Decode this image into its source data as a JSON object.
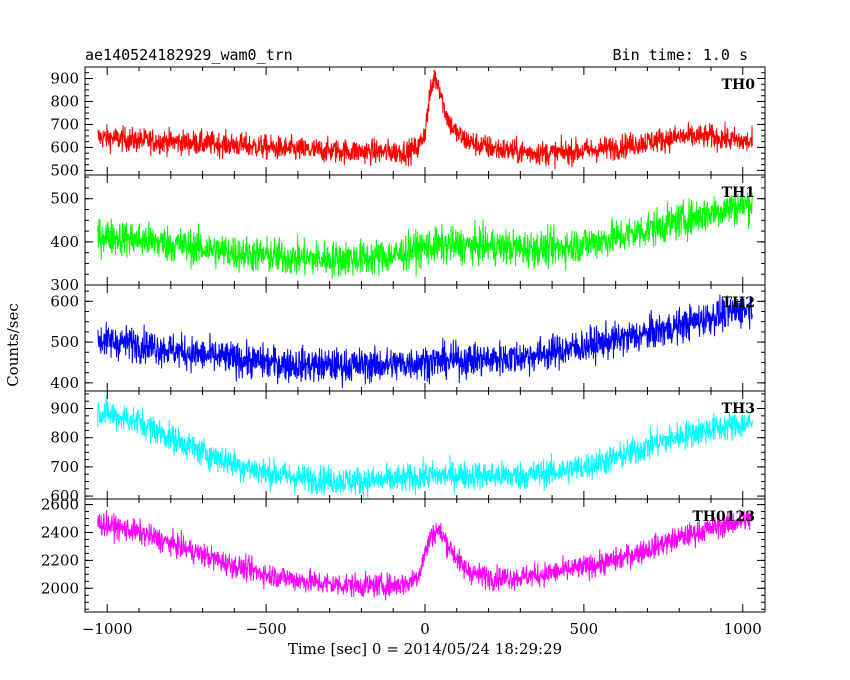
{
  "chart_data": {
    "type": "line",
    "title_left": "ae140524182929_wam0_trn",
    "title_right": "Bin time: 1.0 s",
    "xlabel": "Time [sec] 0 = 2014/05/24 18:29:29",
    "ylabel": "Counts/sec",
    "xlim": [
      -1070,
      1070
    ],
    "xticks": [
      -1000,
      -500,
      0,
      500,
      1000
    ],
    "xtick_labels": [
      "−1000",
      "−500",
      "0",
      "500",
      "1000"
    ],
    "grid": false,
    "panels": [
      {
        "name": "TH0",
        "color": "#ff0000",
        "ylim": [
          480,
          950
        ],
        "yticks": [
          500,
          600,
          700,
          800,
          900
        ],
        "ytick_labels": [
          "500",
          "600",
          "700",
          "800",
          "900"
        ],
        "noise": 38,
        "x": [
          -1030,
          -900,
          -800,
          -700,
          -600,
          -500,
          -400,
          -300,
          -200,
          -100,
          -50,
          -20,
          0,
          15,
          30,
          45,
          60,
          80,
          100,
          130,
          170,
          220,
          300,
          400,
          500,
          600,
          700,
          800,
          900,
          1030
        ],
        "mean": [
          645,
          630,
          625,
          618,
          612,
          600,
          590,
          585,
          582,
          580,
          583,
          600,
          670,
          820,
          910,
          870,
          770,
          700,
          660,
          630,
          610,
          595,
          580,
          575,
          585,
          600,
          625,
          645,
          648,
          620
        ]
      },
      {
        "name": "TH1",
        "color": "#00ff00",
        "ylim": [
          300,
          555
        ],
        "yticks": [
          300,
          400,
          500
        ],
        "ytick_labels": [
          "300",
          "400",
          "500"
        ],
        "noise": 30,
        "x": [
          -1030,
          -900,
          -800,
          -700,
          -600,
          -500,
          -400,
          -300,
          -200,
          -100,
          0,
          100,
          200,
          300,
          400,
          500,
          600,
          700,
          800,
          900,
          1030
        ],
        "mean": [
          415,
          405,
          395,
          385,
          375,
          368,
          362,
          360,
          362,
          368,
          388,
          392,
          390,
          385,
          385,
          395,
          410,
          428,
          448,
          468,
          490
        ]
      },
      {
        "name": "TH2",
        "color": "#0000ff",
        "ylim": [
          380,
          640
        ],
        "yticks": [
          400,
          500,
          600
        ],
        "ytick_labels": [
          "400",
          "500",
          "600"
        ],
        "noise": 30,
        "x": [
          -1030,
          -900,
          -800,
          -700,
          -600,
          -500,
          -400,
          -300,
          -200,
          -100,
          0,
          100,
          200,
          300,
          400,
          500,
          600,
          700,
          800,
          900,
          1030
        ],
        "mean": [
          505,
          495,
          480,
          468,
          458,
          450,
          445,
          442,
          443,
          445,
          452,
          455,
          458,
          463,
          475,
          490,
          505,
          520,
          540,
          562,
          585
        ]
      },
      {
        "name": "TH3",
        "color": "#00ffff",
        "ylim": [
          590,
          960
        ],
        "yticks": [
          600,
          700,
          800,
          900
        ],
        "ytick_labels": [
          "600",
          "700",
          "800",
          "900"
        ],
        "noise": 35,
        "x": [
          -1030,
          -900,
          -800,
          -700,
          -600,
          -500,
          -400,
          -300,
          -200,
          -100,
          0,
          100,
          200,
          300,
          400,
          500,
          600,
          700,
          800,
          900,
          1030
        ],
        "mean": [
          890,
          855,
          800,
          750,
          710,
          680,
          662,
          655,
          652,
          655,
          668,
          672,
          670,
          670,
          680,
          700,
          730,
          770,
          805,
          830,
          850
        ]
      },
      {
        "name": "TH0123",
        "color": "#ff00ff",
        "ylim": [
          1830,
          2640
        ],
        "yticks": [
          2000,
          2200,
          2400,
          2600
        ],
        "ytick_labels": [
          "2000",
          "2200",
          "2400",
          "2600"
        ],
        "noise": 60,
        "x": [
          -1030,
          -900,
          -800,
          -700,
          -600,
          -500,
          -400,
          -300,
          -200,
          -100,
          -50,
          -20,
          0,
          20,
          40,
          60,
          90,
          120,
          160,
          220,
          300,
          400,
          500,
          600,
          700,
          800,
          900,
          1030
        ],
        "mean": [
          2470,
          2400,
          2320,
          2240,
          2160,
          2100,
          2060,
          2030,
          2020,
          2020,
          2040,
          2100,
          2250,
          2380,
          2420,
          2360,
          2250,
          2150,
          2100,
          2075,
          2080,
          2110,
          2150,
          2200,
          2280,
          2360,
          2430,
          2500
        ]
      }
    ]
  }
}
